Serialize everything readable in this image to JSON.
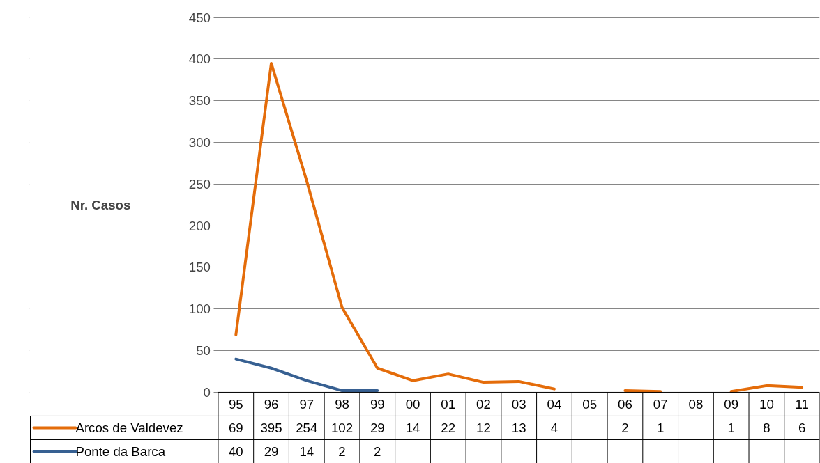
{
  "chart_data": {
    "type": "line",
    "ylabel": "Nr. Casos",
    "categories": [
      "95",
      "96",
      "97",
      "98",
      "99",
      "00",
      "01",
      "02",
      "03",
      "04",
      "05",
      "06",
      "07",
      "08",
      "09",
      "10",
      "11"
    ],
    "series": [
      {
        "name": "Arcos de Valdevez",
        "color": "#e46c0a",
        "values": [
          69,
          395,
          254,
          102,
          29,
          14,
          22,
          12,
          13,
          4,
          null,
          2,
          1,
          null,
          1,
          8,
          6
        ]
      },
      {
        "name": "Ponte da Barca",
        "color": "#376092",
        "values": [
          40,
          29,
          14,
          2,
          2,
          null,
          null,
          null,
          null,
          null,
          null,
          null,
          null,
          null,
          null,
          null,
          null
        ]
      }
    ],
    "ylim": [
      0,
      450
    ],
    "yticks": [
      0,
      50,
      100,
      150,
      200,
      250,
      300,
      350,
      400,
      450
    ],
    "grid": "y",
    "legend": "bottom",
    "data_labels": true
  }
}
